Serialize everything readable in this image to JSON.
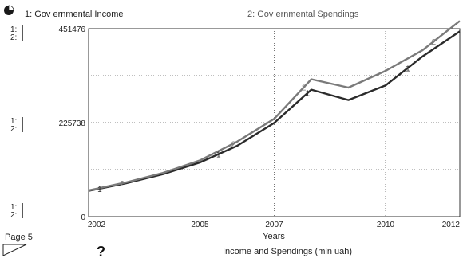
{
  "page_label": "Page 5",
  "help_symbol": "?",
  "chart_data": {
    "type": "line",
    "title": "Income and Spendings (mln uah)",
    "xlabel": "Years",
    "ylabel": "",
    "xlim": [
      2002,
      2012
    ],
    "ylim": [
      0,
      451476
    ],
    "x_tick_labels": [
      "2002",
      "2005",
      "2007",
      "2010",
      "2012"
    ],
    "y_tick_labels": [
      "451476",
      "225738",
      "0"
    ],
    "scale_markers": [
      "1:",
      "2:"
    ],
    "grid": true,
    "series": [
      {
        "id": "1",
        "name": "1: Gov ernmental Income",
        "color": "#2b2b2b",
        "x": [
          2002,
          2003,
          2004,
          2005,
          2006,
          2007,
          2008,
          2009,
          2010,
          2011,
          2012
        ],
        "y": [
          62000,
          80000,
          102000,
          130000,
          170000,
          225000,
          305000,
          280000,
          315000,
          385000,
          445000
        ],
        "marker_x": [
          2002.3,
          2005.5,
          2007.9,
          2010.6
        ]
      },
      {
        "id": "2",
        "name": "2: Gov ernmental Spendings",
        "color": "#7a7a7a",
        "x": [
          2002,
          2003,
          2004,
          2005,
          2006,
          2007,
          2008,
          2009,
          2010,
          2011,
          2012
        ],
        "y": [
          63000,
          82000,
          105000,
          135000,
          180000,
          235000,
          330000,
          310000,
          350000,
          400000,
          470000
        ],
        "marker_x": [
          2002.9,
          2005.9,
          2007.8,
          2011.3
        ]
      }
    ]
  }
}
